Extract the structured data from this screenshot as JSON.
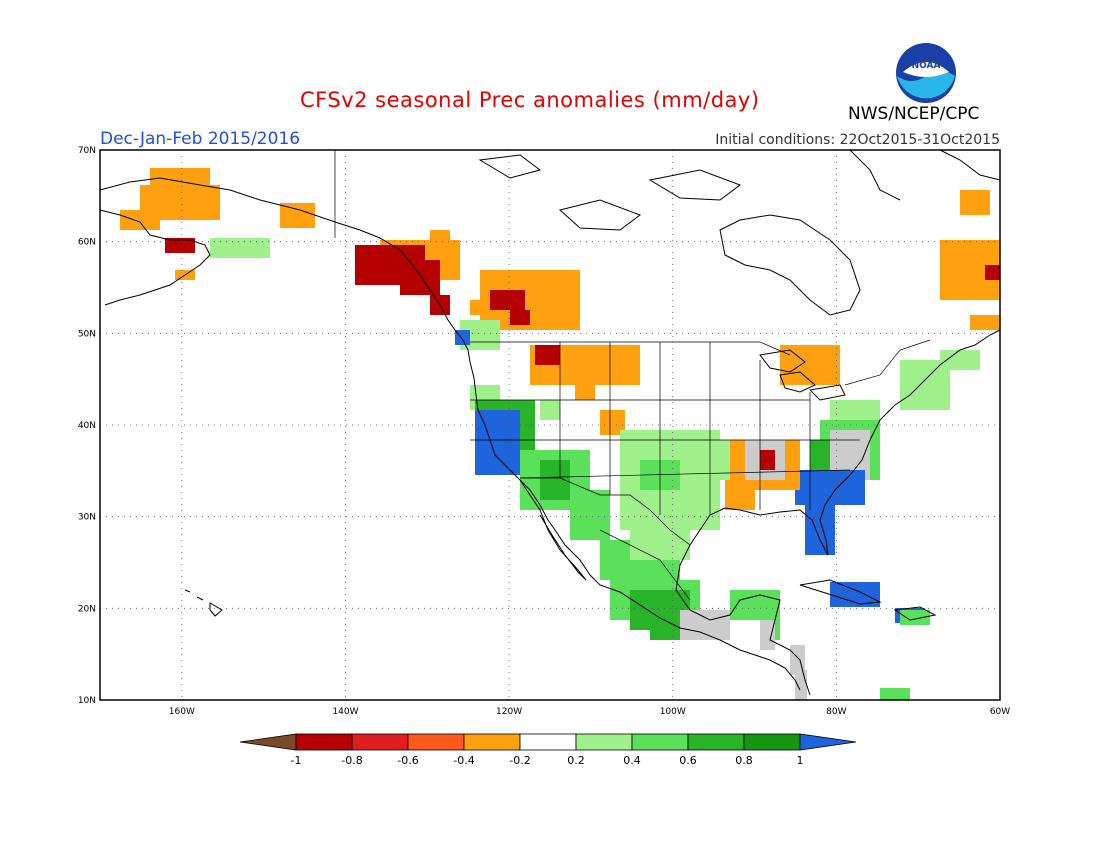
{
  "title": "CFSv2 seasonal Prec anomalies (mm/day)",
  "season": "Dec-Jan-Feb 2015/2016",
  "initial_conditions": "Initial conditions: 22Oct2015-31Oct2015",
  "agency": "NWS/NCEP/CPC",
  "logo_text": "NOAA",
  "map": {
    "lat_labels": [
      "70N",
      "60N",
      "50N",
      "40N",
      "30N",
      "20N",
      "10N"
    ],
    "lon_labels": [
      "160W",
      "140W",
      "120W",
      "100W",
      "80W",
      "60W"
    ],
    "lat_range": [
      10,
      70
    ],
    "lon_range": [
      -170,
      -60
    ]
  },
  "legend": {
    "tick_labels": [
      "-1",
      "-0.8",
      "-0.6",
      "-0.4",
      "-0.2",
      "0.2",
      "0.4",
      "0.6",
      "0.8",
      "1"
    ],
    "colors": [
      "#7a4a2a",
      "#b40000",
      "#e01e1e",
      "#ff5a1e",
      "#ffa010",
      "#ffffff",
      "#a0f08c",
      "#5ae05a",
      "#28b428",
      "#149614",
      "#1e64dc"
    ]
  },
  "anomaly_regions": [
    {
      "level": "-0.4",
      "desc": "orange",
      "color": "#ffa010"
    },
    {
      "level": "-0.8",
      "desc": "dark red",
      "color": "#b40000"
    },
    {
      "level": "0.2",
      "desc": "light green",
      "color": "#a0f08c"
    },
    {
      "level": "0.4",
      "desc": "green",
      "color": "#5ae05a"
    },
    {
      "level": "0.6",
      "desc": "medium green",
      "color": "#28b428"
    },
    {
      "level": "1",
      "desc": "blue",
      "color": "#1e64dc"
    }
  ]
}
